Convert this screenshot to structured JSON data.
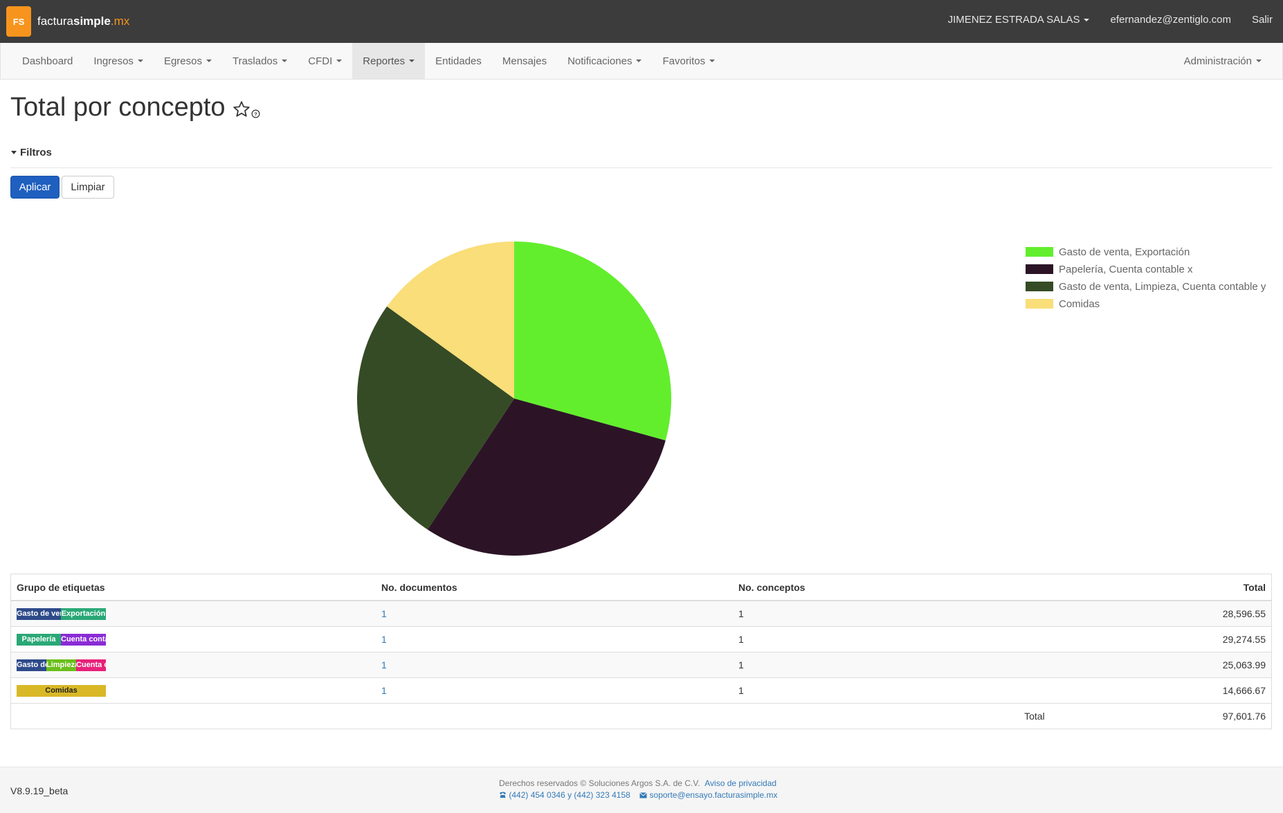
{
  "header": {
    "logo_text": "FS",
    "brand_part1": "factura",
    "brand_part2": "simple",
    "brand_part3": ".mx",
    "company": "JIMENEZ ESTRADA SALAS",
    "email": "efernandez@zentiglo.com",
    "logout": "Salir"
  },
  "nav": {
    "items": [
      {
        "label": "Dashboard"
      },
      {
        "label": "Ingresos"
      },
      {
        "label": "Egresos"
      },
      {
        "label": "Traslados"
      },
      {
        "label": "CFDI"
      },
      {
        "label": "Reportes"
      },
      {
        "label": "Entidades"
      },
      {
        "label": "Mensajes"
      },
      {
        "label": "Notificaciones"
      },
      {
        "label": "Favoritos"
      }
    ],
    "admin": "Administración",
    "active": "Reportes"
  },
  "page": {
    "title": "Total por concepto",
    "filters_label": "Filtros",
    "apply": "Aplicar",
    "clear": "Limpiar"
  },
  "colors": {
    "slice1": "#62ee2d",
    "slice2": "#2c1426",
    "slice3": "#354b25",
    "slice4": "#f9de79"
  },
  "chart_data": {
    "type": "pie",
    "categories": [
      "Gasto de venta, Exportación",
      "Papelería, Cuenta contable x",
      "Gasto de venta, Limpieza, Cuenta contable y",
      "Comidas"
    ],
    "values": [
      28596.55,
      29274.55,
      25063.99,
      14666.67
    ],
    "legend_position": "top-right"
  },
  "table": {
    "headers": {
      "group": "Grupo de etiquetas",
      "docs": "No. documentos",
      "concepts": "No. conceptos",
      "total": "Total"
    },
    "rows": [
      {
        "tags": [
          {
            "text": "Gasto de venta",
            "color": "#2e4a8a"
          },
          {
            "text": "Exportación",
            "color": "#2aa876"
          }
        ],
        "docs": "1",
        "concepts": "1",
        "total": "28,596.55"
      },
      {
        "tags": [
          {
            "text": "Papelería",
            "color": "#2aa876"
          },
          {
            "text": "Cuenta contable x",
            "color": "#8a2bd6"
          }
        ],
        "docs": "1",
        "concepts": "1",
        "total": "29,274.55"
      },
      {
        "tags": [
          {
            "text": "Gasto de venta",
            "color": "#2e4a8a"
          },
          {
            "text": "Limpieza",
            "color": "#6bbf1a"
          },
          {
            "text": "Cuenta contable y",
            "color": "#e8217a"
          }
        ],
        "docs": "1",
        "concepts": "1",
        "total": "25,063.99"
      },
      {
        "tags": [
          {
            "text": "Comidas",
            "color": "#d9b827"
          }
        ],
        "docs": "1",
        "concepts": "1",
        "total": "14,666.67"
      }
    ],
    "total_label": "Total",
    "grand_total": "97,601.76"
  },
  "footer": {
    "version": "V8.9.19_beta",
    "rights": "Derechos reservados © Soluciones Argos S.A. de C.V.",
    "privacy": "Aviso de privacidad",
    "phones": "(442) 454 0346 y (442) 323 4158",
    "support_email": "soporte@ensayo.facturasimple.mx",
    "phone_icon": "phone-icon",
    "mail_icon": "envelope-icon"
  }
}
